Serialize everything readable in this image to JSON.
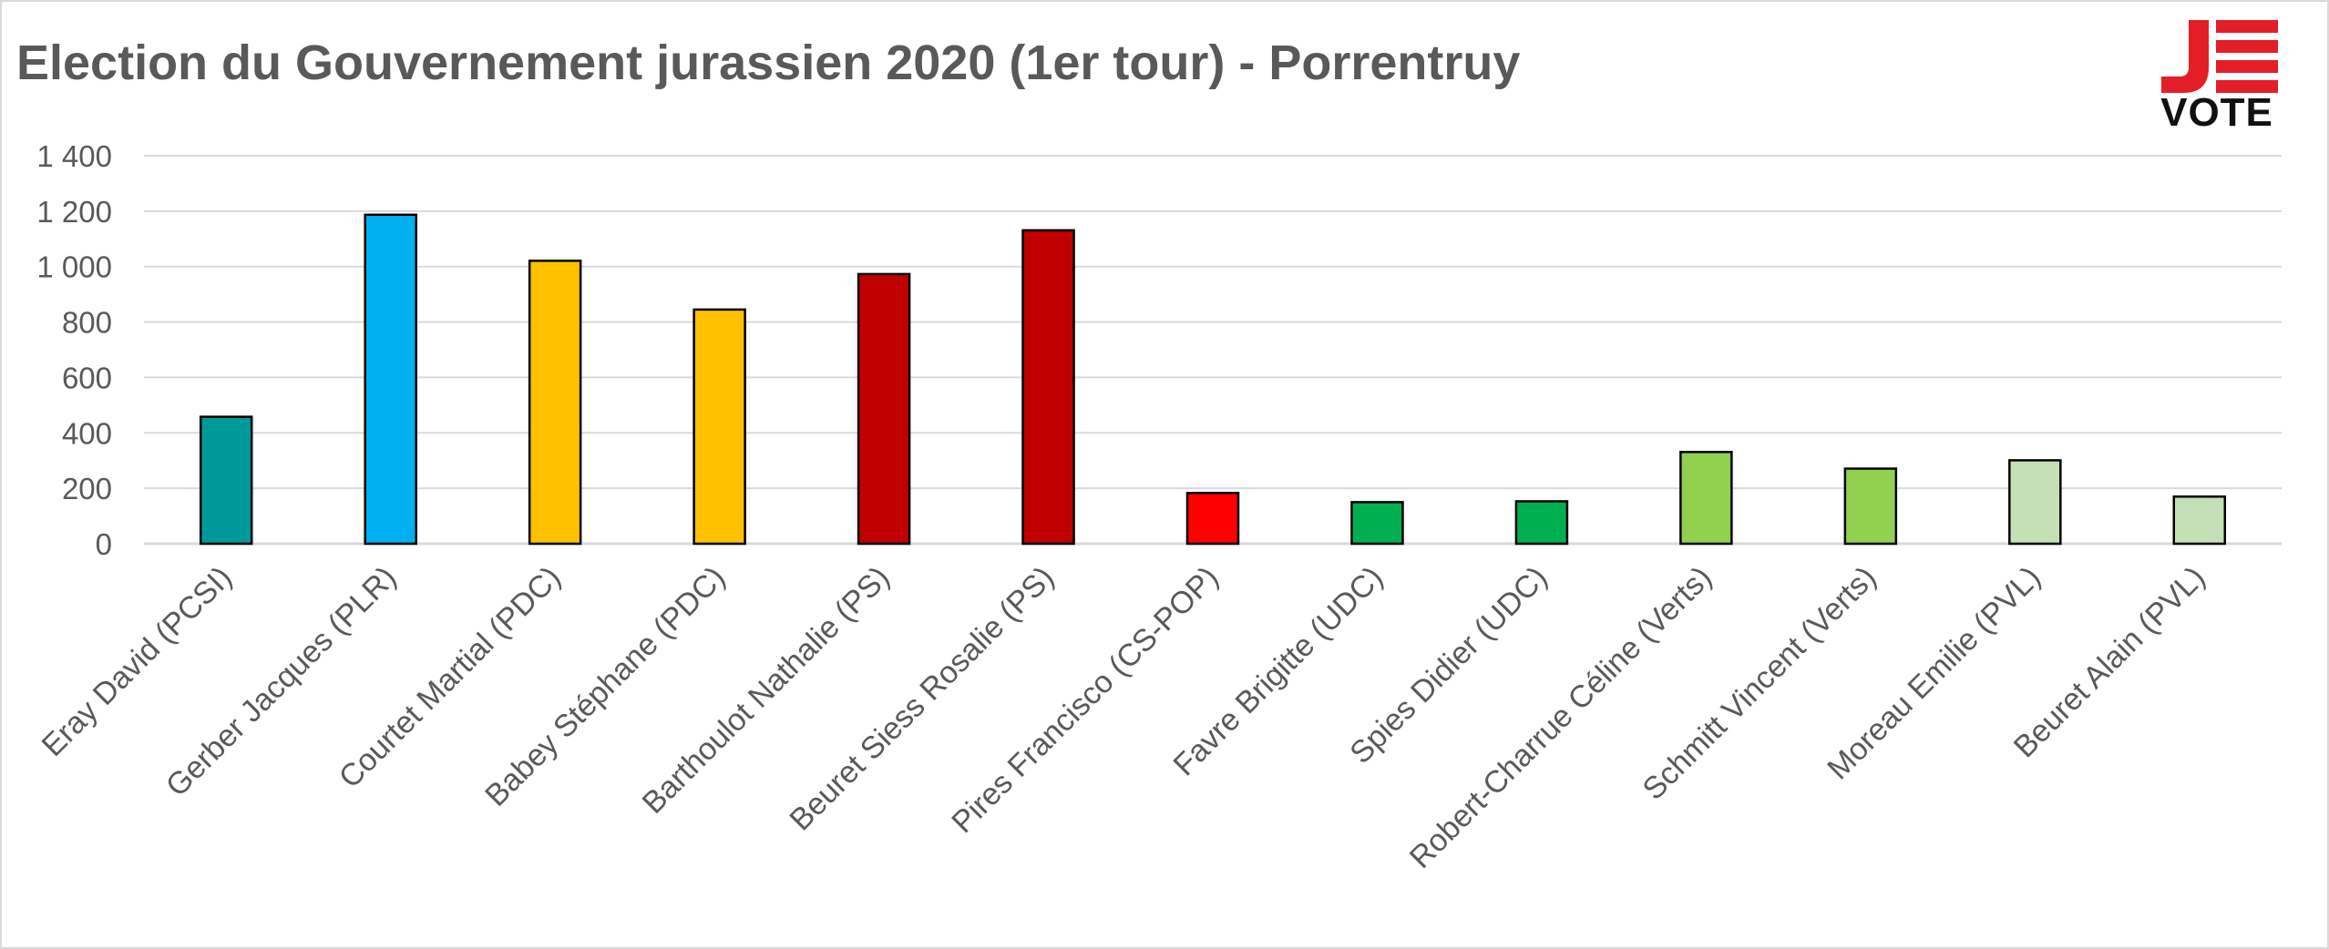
{
  "chart_data": {
    "type": "bar",
    "title": "Election du Gouvernement jurassien 2020 (1er tour) - Porrentruy",
    "xlabel": "",
    "ylabel": "",
    "ylim": [
      0,
      1400
    ],
    "yticks": [
      0,
      200,
      400,
      600,
      800,
      1000,
      1200,
      1400
    ],
    "ytick_labels": [
      "0",
      "200",
      "400",
      "600",
      "800",
      "1 000",
      "1 200",
      "1 400"
    ],
    "grid": true,
    "legend": "none",
    "categories": [
      "Eray David (PCSI)",
      "Gerber Jacques (PLR)",
      "Courtet Martial (PDC)",
      "Babey Stéphane (PDC)",
      "Barthoulot Nathalie (PS)",
      "Beuret Siess Rosalie (PS)",
      "Pires Francisco (CS-POP)",
      "Favre Brigitte (UDC)",
      "Spies Didier (UDC)",
      "Robert-Charrue Céline (Verts)",
      "Schmitt Vincent (Verts)",
      "Moreau Emilie (PVL)",
      "Beuret Alain (PVL)"
    ],
    "values": [
      458,
      1187,
      1021,
      845,
      973,
      1131,
      183,
      150,
      153,
      331,
      271,
      301,
      170
    ],
    "colors": [
      "#009999",
      "#00b0f0",
      "#ffc000",
      "#ffc000",
      "#c00000",
      "#c00000",
      "#ff0000",
      "#00b050",
      "#00b050",
      "#92d050",
      "#92d050",
      "#c5e0b4",
      "#c5e0b4"
    ],
    "gridline_color": "#d9d9d9",
    "bar_border_color": "#000000"
  },
  "logo": {
    "text": "VOTE",
    "letter": "J",
    "accent": "#e41e26"
  }
}
